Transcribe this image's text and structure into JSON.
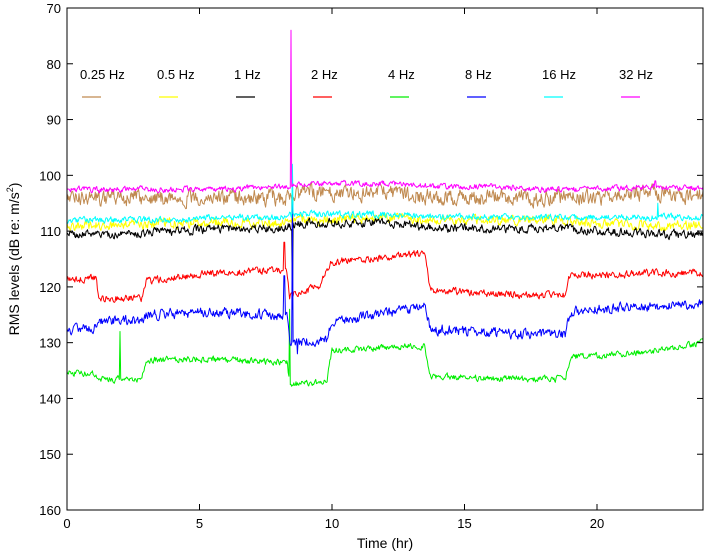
{
  "chart_data": {
    "type": "line",
    "title": "",
    "xlabel": "Time (hr)",
    "ylabel": "RMS levels (dB re: m/s",
    "ylabel_sup": "2",
    "ylabel_end": ")",
    "xlim": [
      0,
      24
    ],
    "ylim": [
      70,
      160
    ],
    "y_reversed": true,
    "grid": false,
    "legend_position": "top, inside plot, single row",
    "x_ticks": [
      0,
      5,
      10,
      15,
      20
    ],
    "x_tick_labels": [
      "0",
      "5",
      "10",
      "15",
      "20"
    ],
    "y_ticks": [
      70,
      80,
      90,
      100,
      110,
      120,
      130,
      140,
      150,
      160
    ],
    "y_tick_labels": [
      "70",
      "80",
      "90",
      "100",
      "110",
      "120",
      "130",
      "140",
      "150",
      "160"
    ],
    "series": [
      {
        "name": "0.25 Hz",
        "color": "#c08a50",
        "noise": 2.2,
        "x": [
          0,
          2,
          4,
          6,
          8,
          8.5,
          9,
          12,
          14,
          16,
          18,
          20,
          22,
          24
        ],
        "y": [
          104,
          104,
          104,
          104,
          104,
          104,
          103,
          103,
          104,
          104,
          104,
          104,
          103,
          104
        ],
        "spikes": [
          {
            "x": 8.5,
            "y": 116
          }
        ]
      },
      {
        "name": "0.5 Hz",
        "color": "#ffff00",
        "noise": 1.4,
        "x": [
          0,
          2,
          4,
          6,
          8,
          8.5,
          9,
          12,
          14,
          16,
          18,
          20,
          22,
          24
        ],
        "y": [
          109,
          109,
          108.5,
          108.5,
          108.5,
          108,
          108,
          107.5,
          108,
          108,
          108,
          108.5,
          109,
          109
        ]
      },
      {
        "name": "1 Hz",
        "color": "#000000",
        "noise": 1.2,
        "x": [
          0,
          2,
          4,
          6,
          8,
          8.5,
          9,
          12,
          14,
          16,
          18,
          20,
          22,
          24
        ],
        "y": [
          110.5,
          110.5,
          110,
          109.5,
          109.5,
          109,
          108.5,
          108.5,
          109.5,
          109.5,
          109.5,
          110,
          110.5,
          110.5
        ],
        "spikes": [
          {
            "x": 8.5,
            "y": 124
          }
        ]
      },
      {
        "name": "2 Hz",
        "color": "#ff0000",
        "noise": 1.0,
        "x": [
          0,
          1.1,
          1.2,
          2.8,
          3.0,
          5.5,
          8.0,
          8.3,
          8.4,
          9.5,
          10.0,
          13.5,
          13.7,
          17.0,
          18.8,
          19.0,
          20.0,
          22.0,
          24.0
        ],
        "y": [
          118.5,
          118.5,
          122,
          122,
          119,
          117.5,
          117,
          117,
          121.5,
          120,
          115.5,
          114,
          120.5,
          121.5,
          121.5,
          117.5,
          118,
          117.5,
          117.5
        ],
        "spikes": [
          {
            "x": 8.2,
            "y": 112
          }
        ]
      },
      {
        "name": "4 Hz",
        "color": "#00ee00",
        "noise": 0.9,
        "x": [
          0,
          1.1,
          1.2,
          2.8,
          3.0,
          5.5,
          8.0,
          8.3,
          8.4,
          9.8,
          10.0,
          13.5,
          13.7,
          17.0,
          18.8,
          19.0,
          20.0,
          22.0,
          24.0
        ],
        "y": [
          135.5,
          135.5,
          136.5,
          136.5,
          133,
          133,
          133.5,
          133.5,
          137.5,
          137,
          131.5,
          130.5,
          136,
          136.5,
          136.5,
          132.5,
          132.5,
          131.5,
          130
        ],
        "spikes": [
          {
            "x": 2.0,
            "y": 128
          },
          {
            "x": 8.4,
            "y": 124
          }
        ]
      },
      {
        "name": "8 Hz",
        "color": "#0000ff",
        "noise": 1.4,
        "x": [
          0,
          1.1,
          1.2,
          2.8,
          3.0,
          5.5,
          8.0,
          8.3,
          8.4,
          9.8,
          10.0,
          11.5,
          13.5,
          13.7,
          17.0,
          18.8,
          19.0,
          20.0,
          22.0,
          24.0
        ],
        "y": [
          128,
          127,
          126,
          126,
          125,
          124.5,
          125,
          125,
          130,
          129.5,
          126.5,
          125,
          123.5,
          127.5,
          128.5,
          128.5,
          124.5,
          124,
          123.5,
          123
        ],
        "spikes": [
          {
            "x": 8.2,
            "y": 118
          },
          {
            "x": 8.5,
            "y": 104
          },
          {
            "x": 8.7,
            "y": 132
          }
        ]
      },
      {
        "name": "16 Hz",
        "color": "#00ffff",
        "noise": 0.9,
        "x": [
          0,
          2,
          4,
          6,
          8,
          8.5,
          9,
          12,
          14,
          16,
          18,
          20,
          22,
          24
        ],
        "y": [
          108,
          108,
          108,
          107.5,
          107.5,
          107,
          107,
          107,
          107.5,
          107.5,
          107.5,
          107.5,
          107.5,
          107.5
        ],
        "spikes": [
          {
            "x": 8.5,
            "y": 98
          },
          {
            "x": 22.3,
            "y": 105
          }
        ]
      },
      {
        "name": "32 Hz",
        "color": "#ff00ff",
        "noise": 0.8,
        "x": [
          0,
          2,
          4,
          6,
          8,
          8.5,
          9,
          12,
          14,
          16,
          18,
          20,
          22,
          24
        ],
        "y": [
          102.5,
          102.5,
          102.5,
          102.5,
          102,
          102,
          101.5,
          101.5,
          102,
          102,
          102.5,
          102.5,
          102,
          102.5
        ],
        "spikes": [
          {
            "x": 8.45,
            "y": 74
          },
          {
            "x": 22.2,
            "y": 101
          }
        ]
      }
    ]
  }
}
